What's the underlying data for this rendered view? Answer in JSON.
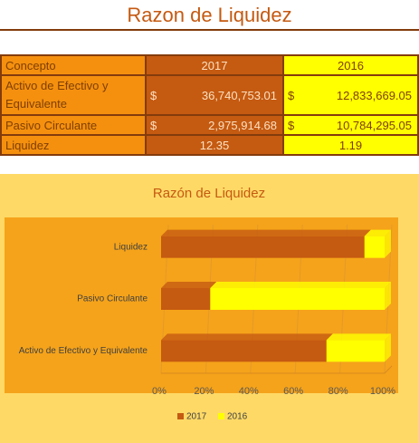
{
  "title": "Razon de Liquidez",
  "table": {
    "header": [
      "Concepto",
      "2017",
      "2016"
    ],
    "rows": [
      [
        "Activo de Efectivo y Equivalente",
        "$",
        "36,740,753.01",
        "$",
        "12,833,669.05"
      ],
      [
        "Pasivo Circulante",
        "$",
        "2,975,914.68",
        "$",
        "10,784,295.05"
      ],
      [
        "Liquidez",
        "12.35",
        "1.19"
      ]
    ]
  },
  "chart_data": {
    "type": "bar",
    "orientation": "horizontal",
    "stacked": true,
    "title": "Razón de Liquidez",
    "categories": [
      "Liquidez",
      "Pasivo Circulante",
      "Activo de Efectivo y Equivalente"
    ],
    "series": [
      {
        "name": "2017",
        "color": "#c55a11",
        "values": [
          91,
          22,
          74
        ]
      },
      {
        "name": "2016",
        "color": "#ffff00",
        "values": [
          9,
          78,
          26
        ]
      }
    ],
    "xlim": [
      0,
      100
    ],
    "xticks": [
      {
        "value": 0,
        "label": "0%"
      },
      {
        "value": 20,
        "label": "20%"
      },
      {
        "value": 40,
        "label": "40%"
      },
      {
        "value": 60,
        "label": "60%"
      },
      {
        "value": 80,
        "label": "80%"
      },
      {
        "value": 100,
        "label": "100%"
      }
    ],
    "grid": true,
    "legend": "bottom"
  }
}
